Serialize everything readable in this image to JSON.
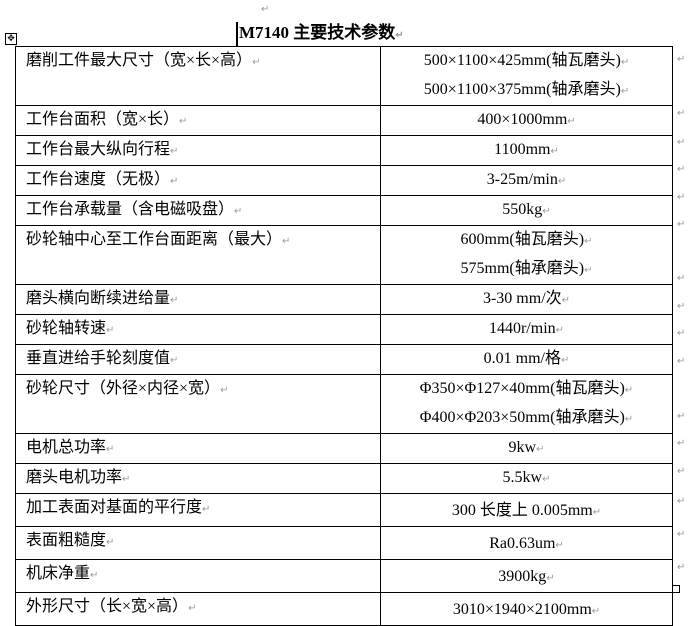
{
  "title": "M7140 主要技术参数",
  "rows": [
    {
      "label": "磨削工件最大尺寸（宽×长×高）",
      "values": [
        "500×1100×425mm(轴瓦磨头)",
        "500×1100×375mm(轴承磨头)"
      ]
    },
    {
      "label": "工作台面积（宽×长）",
      "values": [
        "400×1000mm"
      ]
    },
    {
      "label": "工作台最大纵向行程",
      "values": [
        "1100mm"
      ]
    },
    {
      "label": "工作台速度（无极）",
      "values": [
        "3-25m/min"
      ]
    },
    {
      "label": "工作台承载量（含电磁吸盘）",
      "values": [
        "550kg"
      ]
    },
    {
      "label": "砂轮轴中心至工作台面距离（最大）",
      "values": [
        "600mm(轴瓦磨头)",
        "575mm(轴承磨头)"
      ]
    },
    {
      "label": "磨头横向断续进给量",
      "values": [
        "3-30 mm/次"
      ]
    },
    {
      "label": "砂轮轴转速",
      "values": [
        "1440r/min"
      ]
    },
    {
      "label": "垂直进给手轮刻度值",
      "values": [
        "0.01 mm/格"
      ]
    },
    {
      "label": "砂轮尺寸（外径×内径×宽）",
      "values": [
        "Φ350×Φ127×40mm(轴瓦磨头)",
        "Φ400×Φ203×50mm(轴承磨头)"
      ]
    },
    {
      "label": "电机总功率",
      "values": [
        "9kw"
      ]
    },
    {
      "label": "磨头电机功率",
      "values": [
        "5.5kw"
      ]
    },
    {
      "label": "加工表面对基面的平行度",
      "values": [
        "300 长度上 0.005mm"
      ]
    },
    {
      "label": "表面粗糙度",
      "values": [
        "Ra0.63um"
      ]
    },
    {
      "label": "机床净重",
      "values": [
        "3900kg"
      ]
    },
    {
      "label": "外形尺寸（长×宽×高）",
      "values": [
        "3010×1940×2100mm"
      ]
    }
  ]
}
